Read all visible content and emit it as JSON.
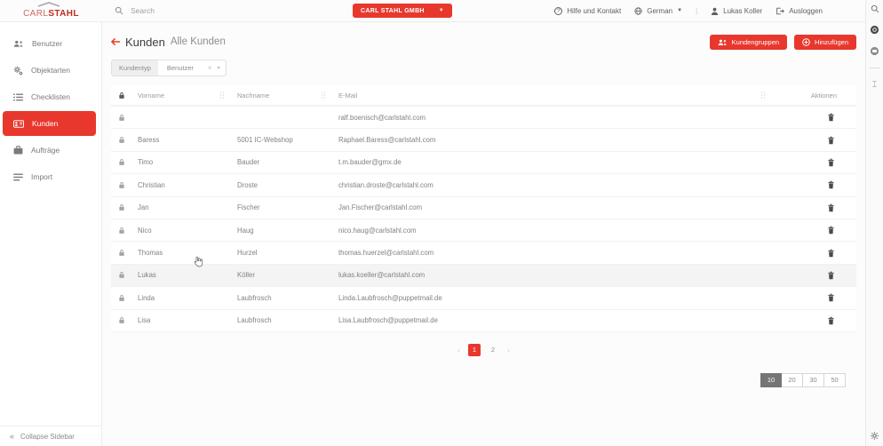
{
  "colors": {
    "accent": "#e8382d",
    "pagesize_active": "#757575"
  },
  "topbar": {
    "logo_part1": "CARL",
    "logo_part2": "STAHL",
    "search_placeholder": "Search",
    "company": "CARL STAHL GMBH",
    "help": "Hilfe und Kontakt",
    "language": "German",
    "divider": "|",
    "user": "Lukas Koller",
    "logout": "Ausloggen"
  },
  "sidebar": {
    "items": [
      {
        "label": "Benutzer",
        "icon": "users-icon"
      },
      {
        "label": "Objektarten",
        "icon": "gears-icon"
      },
      {
        "label": "Checklisten",
        "icon": "checklist-icon"
      },
      {
        "label": "Kunden",
        "icon": "id-card-icon",
        "active": true
      },
      {
        "label": "Aufträge",
        "icon": "briefcase-icon"
      },
      {
        "label": "Import",
        "icon": "import-icon"
      }
    ],
    "collapse_chevrons": "«",
    "collapse": "Collapse Sidebar"
  },
  "page": {
    "title": "Kunden",
    "subtitle": "Alle Kunden",
    "group_button": "Kundengruppen",
    "add_button": "Hinzufügen",
    "filter_label": "Kundentyp",
    "filter_value": "Benutzer",
    "filter_clear": "×",
    "filter_caret": "▾"
  },
  "table": {
    "headers": {
      "vorname": "Vorname",
      "nachname": "Nachname",
      "email": "E-Mail",
      "aktionen": "Aktionen"
    },
    "hover_row_index": 7,
    "rows": [
      {
        "vorname": "",
        "nachname": "",
        "email": "ralf.boenisch@carlstahl.com"
      },
      {
        "vorname": "Baress",
        "nachname": "5001 IC-Webshop",
        "email": "Raphael.Baress@carlstahl.com"
      },
      {
        "vorname": "Timo",
        "nachname": "Bauder",
        "email": "t.m.bauder@gmx.de"
      },
      {
        "vorname": "Christian",
        "nachname": "Droste",
        "email": "christian.droste@carlstahl.com"
      },
      {
        "vorname": "Jan",
        "nachname": "Fischer",
        "email": "Jan.Fischer@carlstahl.com"
      },
      {
        "vorname": "Nico",
        "nachname": "Haug",
        "email": "nico.haug@carlstahl.com"
      },
      {
        "vorname": "Thomas",
        "nachname": "Hurzel",
        "email": "thomas.huerzel@carlstahl.com"
      },
      {
        "vorname": "Lukas",
        "nachname": "Köller",
        "email": "lukas.koeller@carlstahl.com"
      },
      {
        "vorname": "Linda",
        "nachname": "Laubfrosch",
        "email": "Linda.Laubfrosch@puppetmail.de"
      },
      {
        "vorname": "Lisa",
        "nachname": "Laubfrosch",
        "email": "Lisa.Laubfrosch@puppetmail.de"
      }
    ]
  },
  "pagination": {
    "prev": "‹",
    "pages": [
      "1",
      "2"
    ],
    "active_page": "1",
    "next": "›"
  },
  "pagesize": {
    "options": [
      "10",
      "20",
      "30",
      "50"
    ],
    "active": "10"
  }
}
